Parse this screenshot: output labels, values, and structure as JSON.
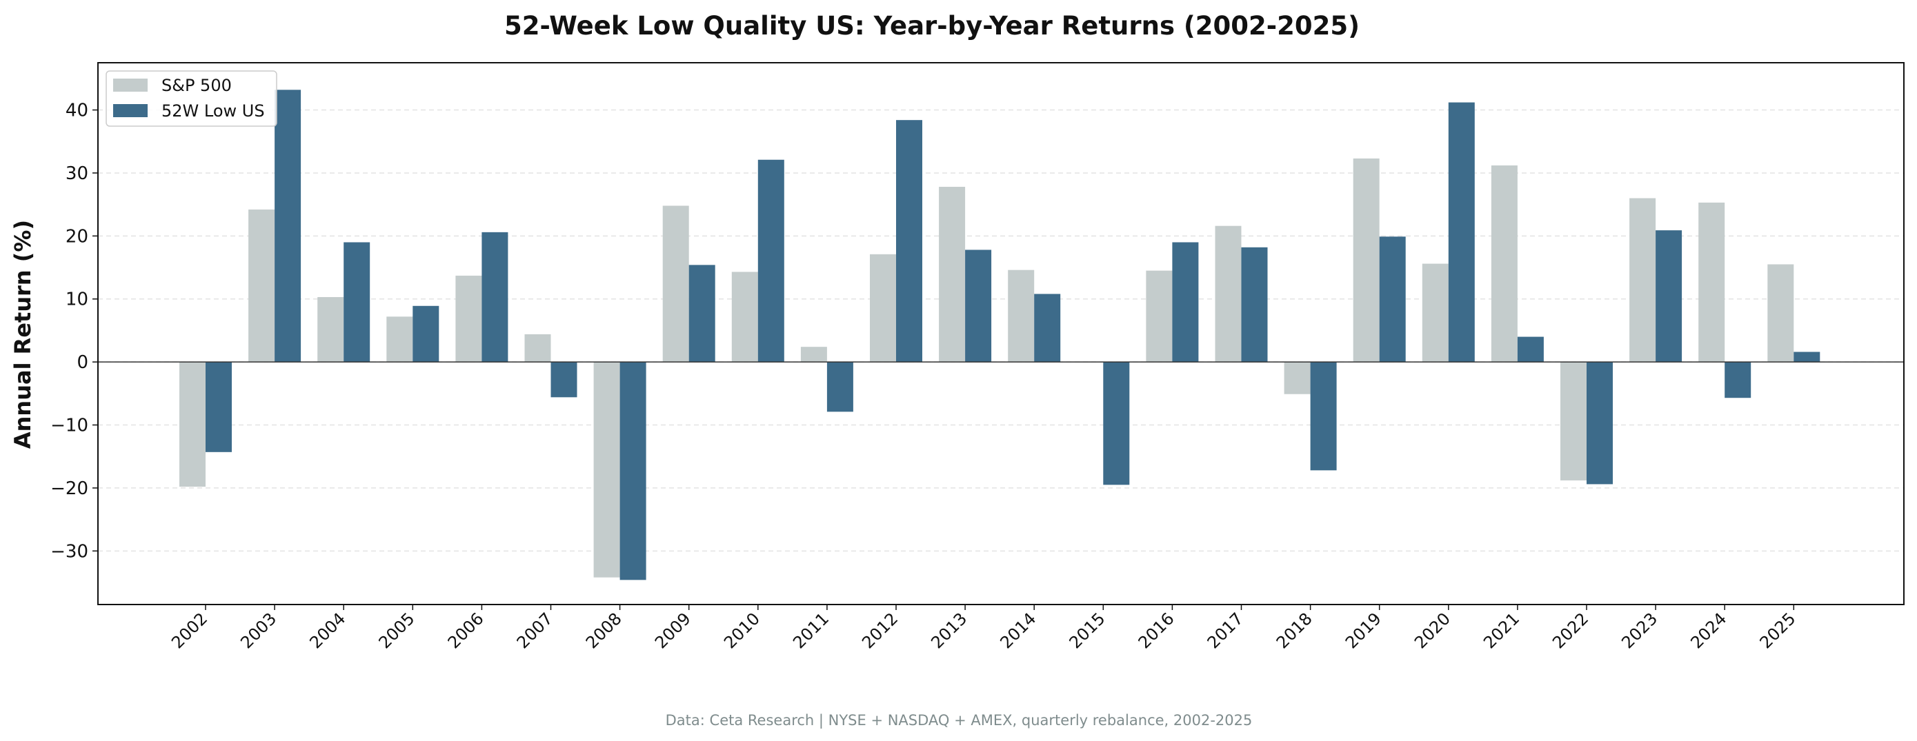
{
  "chart_data": {
    "type": "bar",
    "title": "52-Week Low Quality US: Year-by-Year Returns (2002-2025)",
    "xlabel": "",
    "ylabel": "Annual Return (%)",
    "categories": [
      "2002",
      "2003",
      "2004",
      "2005",
      "2006",
      "2007",
      "2008",
      "2009",
      "2010",
      "2011",
      "2012",
      "2013",
      "2014",
      "2015",
      "2016",
      "2017",
      "2018",
      "2019",
      "2020",
      "2021",
      "2022",
      "2023",
      "2024",
      "2025"
    ],
    "series": [
      {
        "name": "S&P 500",
        "color": "#c4cccc",
        "values": [
          -19.8,
          24.2,
          10.3,
          7.2,
          13.7,
          4.4,
          -34.2,
          24.8,
          14.3,
          2.4,
          17.1,
          27.8,
          14.6,
          0.0,
          14.5,
          21.6,
          -5.1,
          32.3,
          15.6,
          31.2,
          -18.8,
          26.0,
          25.3,
          15.5
        ]
      },
      {
        "name": "52W Low US",
        "color": "#3d6b8a",
        "values": [
          -14.3,
          43.2,
          19.0,
          8.9,
          20.6,
          -5.6,
          -34.6,
          15.4,
          32.1,
          -7.9,
          38.4,
          17.8,
          10.8,
          -19.5,
          19.0,
          18.2,
          -17.2,
          19.9,
          41.2,
          4.0,
          -19.4,
          20.9,
          -5.7,
          1.6
        ]
      }
    ],
    "ylim": [
      -38.5,
      47.5
    ],
    "yticks": [
      -30,
      -20,
      -10,
      0,
      10,
      20,
      30,
      40
    ],
    "grid": "y-dashed",
    "legend": "top-left",
    "footnote": "Data: Ceta Research | NYSE + NASDAQ + AMEX, quarterly rebalance, 2002-2025"
  }
}
